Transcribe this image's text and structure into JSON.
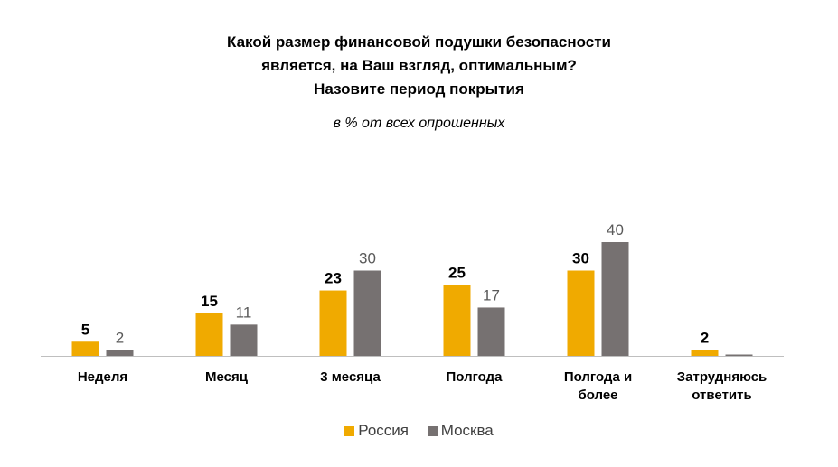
{
  "chart_data": {
    "type": "bar",
    "title_lines": [
      "Какой размер финансовой подушки безопасности",
      "является, на Ваш взгляд, оптимальным?",
      "Назовите период покрытия"
    ],
    "subtitle": "в % от всех опрошенных",
    "categories": [
      [
        "Неделя"
      ],
      [
        "Месяц"
      ],
      [
        "3 месяца"
      ],
      [
        "Полгода"
      ],
      [
        "Полгода и",
        "более"
      ],
      [
        "Затрудняюсь",
        "ответить"
      ]
    ],
    "series": [
      {
        "name": "Россия",
        "values": [
          5,
          15,
          23,
          25,
          30,
          2
        ],
        "color": "#F0AA00",
        "label_bold": true,
        "label_color": "#000000"
      },
      {
        "name": "Москва",
        "values": [
          2,
          11,
          30,
          17,
          40,
          null
        ],
        "color": "#767171",
        "label_bold": false,
        "label_color": "#595959"
      }
    ],
    "ylim": [
      0,
      40
    ],
    "legend_position": "bottom",
    "grid": false
  }
}
